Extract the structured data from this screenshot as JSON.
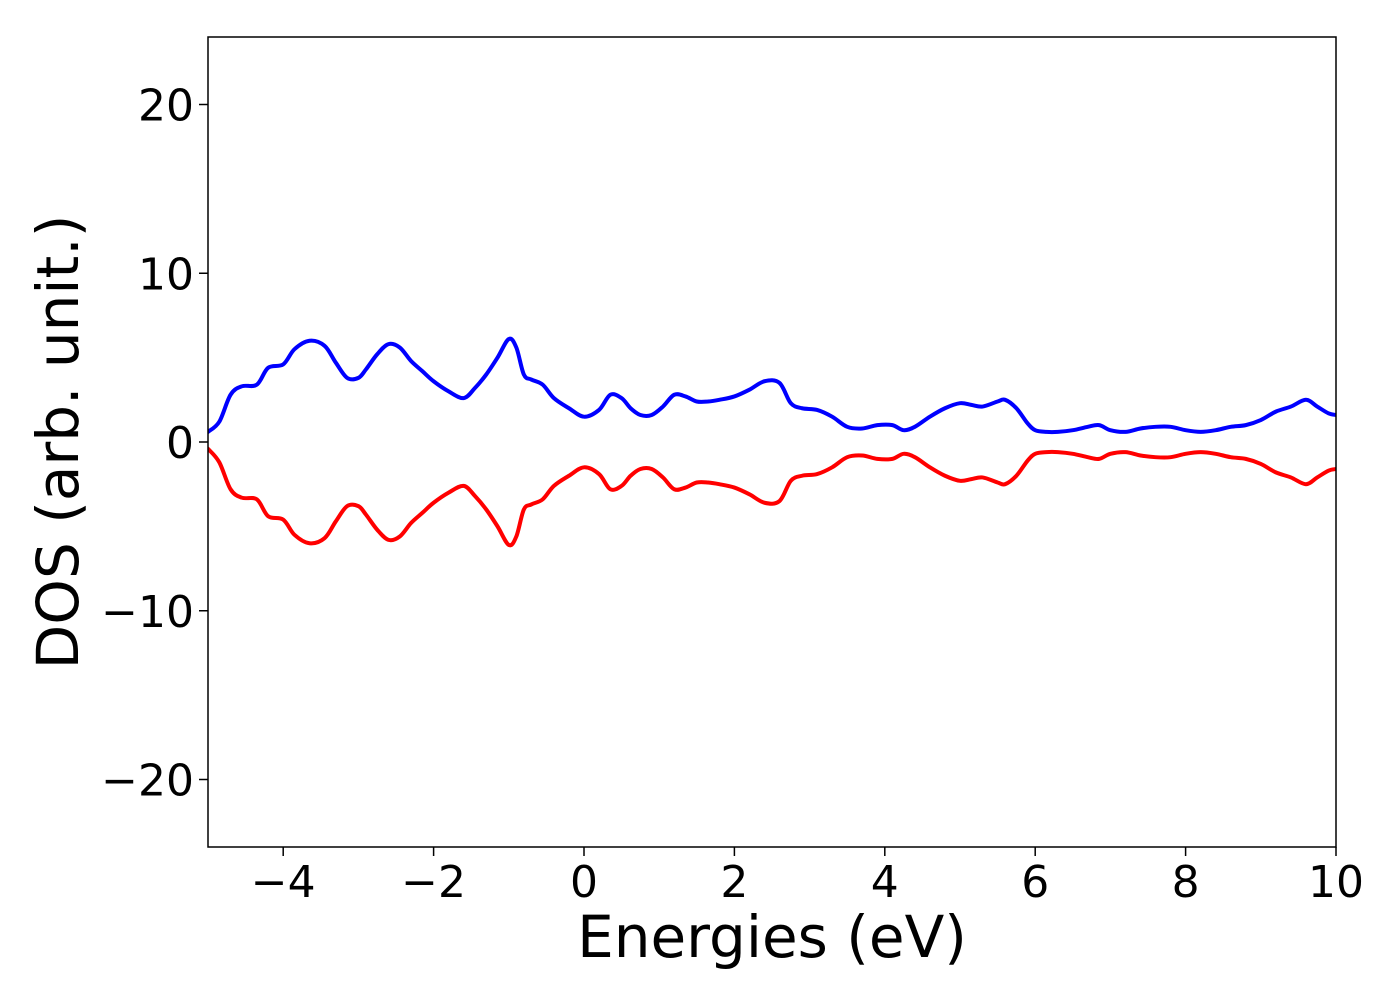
{
  "chart_data": {
    "type": "line",
    "title": "",
    "xlabel": "Energies (eV)",
    "ylabel": "DOS (arb. unit.)",
    "xlim": [
      -5,
      10
    ],
    "ylim": [
      -24,
      24
    ],
    "xticks": [
      -4,
      -2,
      0,
      2,
      4,
      6,
      8,
      10
    ],
    "yticks": [
      -20,
      -10,
      0,
      10,
      20
    ],
    "xtick_labels": [
      "−4",
      "−2",
      "0",
      "2",
      "4",
      "6",
      "8",
      "10"
    ],
    "ytick_labels": [
      "−20",
      "−10",
      "0",
      "10",
      "20"
    ],
    "grid": false,
    "legend": false,
    "series": [
      {
        "color": "#0000ff",
        "x": [
          -5.0,
          -4.85,
          -4.7,
          -4.55,
          -4.35,
          -4.2,
          -4.0,
          -3.85,
          -3.65,
          -3.45,
          -3.3,
          -3.15,
          -3.0,
          -2.9,
          -2.75,
          -2.6,
          -2.45,
          -2.3,
          -2.15,
          -2.0,
          -1.8,
          -1.6,
          -1.45,
          -1.3,
          -1.15,
          -1.0,
          -0.9,
          -0.8,
          -0.7,
          -0.55,
          -0.4,
          -0.2,
          0.0,
          0.2,
          0.35,
          0.5,
          0.62,
          0.75,
          0.9,
          1.05,
          1.2,
          1.35,
          1.5,
          1.65,
          1.8,
          2.0,
          2.2,
          2.4,
          2.6,
          2.75,
          2.9,
          3.1,
          3.3,
          3.5,
          3.7,
          3.9,
          4.1,
          4.25,
          4.4,
          4.6,
          4.8,
          5.0,
          5.15,
          5.3,
          5.5,
          5.6,
          5.75,
          5.9,
          6.0,
          6.15,
          6.3,
          6.5,
          6.7,
          6.85,
          7.0,
          7.2,
          7.4,
          7.6,
          7.8,
          8.0,
          8.2,
          8.4,
          8.6,
          8.8,
          9.0,
          9.2,
          9.4,
          9.6,
          9.75,
          9.9,
          10.0
        ],
        "values": [
          0.6,
          1.2,
          2.8,
          3.3,
          3.4,
          4.4,
          4.6,
          5.5,
          6.0,
          5.7,
          4.7,
          3.8,
          3.8,
          4.3,
          5.2,
          5.8,
          5.6,
          4.8,
          4.2,
          3.6,
          3.0,
          2.6,
          3.2,
          4.0,
          5.0,
          6.1,
          5.6,
          4.0,
          3.7,
          3.4,
          2.6,
          2.0,
          1.5,
          1.9,
          2.8,
          2.6,
          2.0,
          1.6,
          1.6,
          2.1,
          2.8,
          2.7,
          2.4,
          2.4,
          2.5,
          2.7,
          3.1,
          3.6,
          3.5,
          2.3,
          2.0,
          1.9,
          1.5,
          0.9,
          0.8,
          1.0,
          1.0,
          0.7,
          0.9,
          1.5,
          2.0,
          2.3,
          2.2,
          2.1,
          2.4,
          2.5,
          2.0,
          1.1,
          0.7,
          0.6,
          0.6,
          0.7,
          0.9,
          1.0,
          0.7,
          0.6,
          0.8,
          0.9,
          0.9,
          0.7,
          0.6,
          0.7,
          0.9,
          1.0,
          1.3,
          1.8,
          2.1,
          2.5,
          2.1,
          1.7,
          1.6
        ]
      },
      {
        "color": "#ff0000",
        "x": [
          -5.0,
          -4.85,
          -4.7,
          -4.55,
          -4.35,
          -4.2,
          -4.0,
          -3.85,
          -3.65,
          -3.45,
          -3.3,
          -3.15,
          -3.0,
          -2.9,
          -2.75,
          -2.6,
          -2.45,
          -2.3,
          -2.15,
          -2.0,
          -1.8,
          -1.6,
          -1.45,
          -1.3,
          -1.15,
          -1.0,
          -0.9,
          -0.8,
          -0.7,
          -0.55,
          -0.4,
          -0.2,
          0.0,
          0.2,
          0.35,
          0.5,
          0.62,
          0.75,
          0.9,
          1.05,
          1.2,
          1.35,
          1.5,
          1.65,
          1.8,
          2.0,
          2.2,
          2.4,
          2.6,
          2.75,
          2.9,
          3.1,
          3.3,
          3.5,
          3.7,
          3.9,
          4.1,
          4.25,
          4.4,
          4.6,
          4.8,
          5.0,
          5.15,
          5.3,
          5.5,
          5.6,
          5.75,
          5.9,
          6.0,
          6.15,
          6.3,
          6.5,
          6.7,
          6.85,
          7.0,
          7.2,
          7.4,
          7.6,
          7.8,
          8.0,
          8.2,
          8.4,
          8.6,
          8.8,
          9.0,
          9.2,
          9.4,
          9.6,
          9.75,
          9.9,
          10.0
        ],
        "values": [
          -0.4,
          -1.2,
          -2.8,
          -3.3,
          -3.4,
          -4.4,
          -4.6,
          -5.5,
          -6.0,
          -5.7,
          -4.7,
          -3.8,
          -3.8,
          -4.3,
          -5.2,
          -5.8,
          -5.6,
          -4.8,
          -4.2,
          -3.6,
          -3.0,
          -2.6,
          -3.2,
          -4.0,
          -5.0,
          -6.1,
          -5.6,
          -4.0,
          -3.7,
          -3.4,
          -2.6,
          -2.0,
          -1.5,
          -1.9,
          -2.8,
          -2.6,
          -2.0,
          -1.6,
          -1.6,
          -2.1,
          -2.8,
          -2.7,
          -2.4,
          -2.4,
          -2.5,
          -2.7,
          -3.1,
          -3.6,
          -3.5,
          -2.3,
          -2.0,
          -1.9,
          -1.5,
          -0.9,
          -0.8,
          -1.0,
          -1.0,
          -0.7,
          -0.9,
          -1.5,
          -2.0,
          -2.3,
          -2.2,
          -2.1,
          -2.4,
          -2.5,
          -2.0,
          -1.1,
          -0.7,
          -0.6,
          -0.6,
          -0.7,
          -0.9,
          -1.0,
          -0.7,
          -0.6,
          -0.8,
          -0.9,
          -0.9,
          -0.7,
          -0.6,
          -0.7,
          -0.9,
          -1.0,
          -1.3,
          -1.8,
          -2.1,
          -2.5,
          -2.1,
          -1.7,
          -1.6
        ]
      }
    ]
  }
}
